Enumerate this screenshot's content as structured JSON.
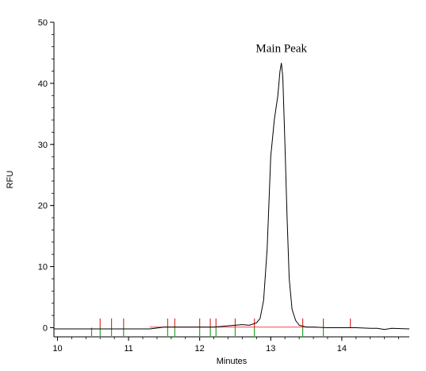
{
  "chart_data": {
    "type": "line",
    "xlabel": "Minutes",
    "ylabel": "RFU",
    "xlim": [
      9.95,
      14.95
    ],
    "ylim": [
      -1.5,
      50
    ],
    "x_ticks": [
      10,
      11,
      12,
      13,
      14
    ],
    "x_tick_labels": [
      "10",
      "11",
      "12",
      "13",
      "14"
    ],
    "y_ticks": [
      0,
      10,
      20,
      30,
      40,
      50
    ],
    "y_tick_labels": [
      "0",
      "10",
      "20",
      "30",
      "40",
      "50"
    ],
    "grid": false,
    "annotations": [
      {
        "text": "Main Peak",
        "x": 13.15,
        "y": 43.3
      }
    ],
    "series": [
      {
        "color": "#000000",
        "x": [
          9.95,
          10.5,
          11.0,
          11.3,
          11.5,
          11.8,
          12.0,
          12.2,
          12.4,
          12.5,
          12.6,
          12.7,
          12.8,
          12.85,
          12.9,
          12.95,
          13.0,
          13.05,
          13.1,
          13.13,
          13.15,
          13.17,
          13.2,
          13.23,
          13.26,
          13.3,
          13.35,
          13.4,
          13.5,
          13.6,
          13.8,
          14.0,
          14.2,
          14.4,
          14.5,
          14.6,
          14.7,
          14.95
        ],
        "y": [
          -0.2,
          -0.2,
          -0.2,
          -0.2,
          0.1,
          0.1,
          0.1,
          0.1,
          0.3,
          0.4,
          0.5,
          0.4,
          0.8,
          1.5,
          4.5,
          13,
          28,
          34,
          38,
          42,
          43.3,
          41,
          30,
          18,
          8,
          3,
          1.2,
          0.4,
          0.1,
          0.1,
          0.0,
          0.0,
          0.0,
          -0.1,
          -0.1,
          -0.3,
          -0.1,
          -0.2
        ]
      }
    ],
    "baseline": {
      "color": "#ff4444",
      "x": [
        11.3,
        13.65
      ],
      "y": [
        0.1,
        0.1
      ]
    },
    "integration_marks": {
      "red": [
        10.6,
        10.76,
        10.93,
        11.55,
        11.65,
        12.0,
        12.15,
        12.23,
        12.5,
        12.77,
        13.45,
        13.74,
        14.12
      ],
      "green": [
        10.48,
        10.6,
        10.76,
        10.93,
        11.55,
        11.65,
        12.0,
        12.15,
        12.23,
        12.5,
        12.77,
        13.45,
        13.74
      ]
    },
    "colors": {
      "trace": "#000000",
      "baseline": "#ff4444",
      "mark_red": "#e03030",
      "mark_green": "#2ca02c"
    }
  }
}
